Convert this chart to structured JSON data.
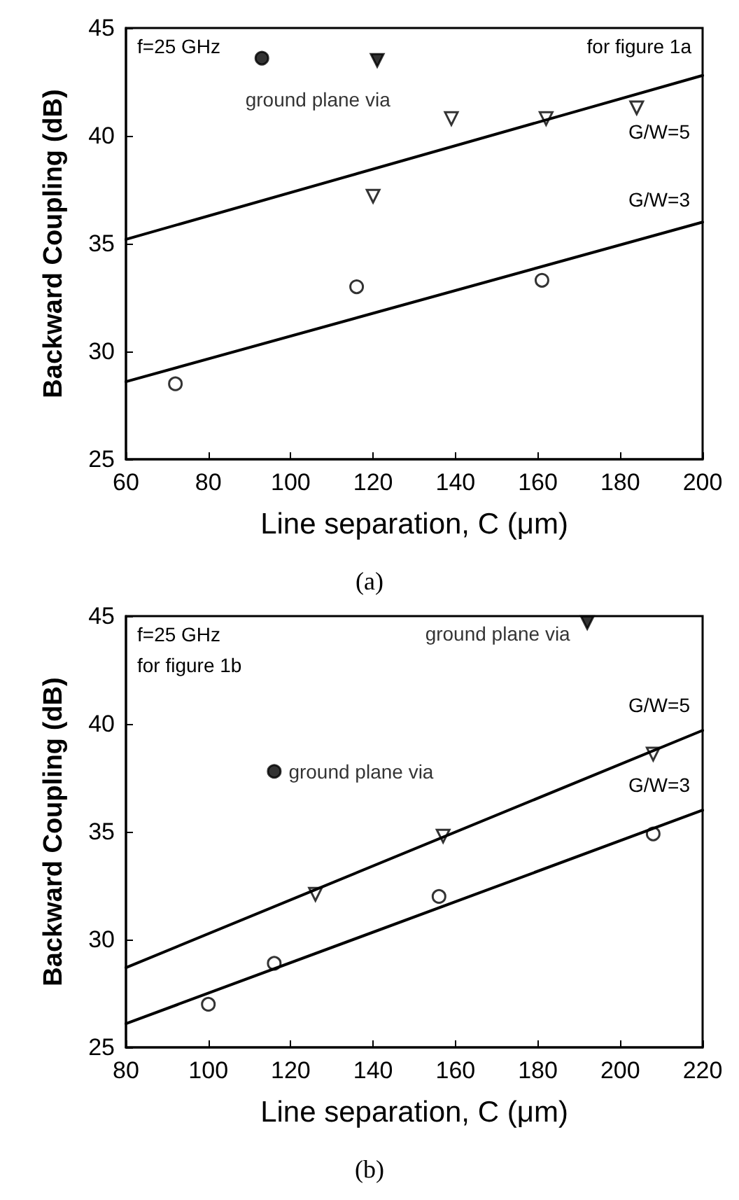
{
  "chart_data": [
    {
      "type": "scatter",
      "xlabel": "Line separation, C (μm)",
      "ylabel": "Backward Coupling (dB)",
      "xlim": [
        60,
        200
      ],
      "ylim": [
        25,
        45
      ],
      "xticks": [
        60,
        80,
        100,
        120,
        140,
        160,
        180,
        200
      ],
      "yticks": [
        25,
        30,
        35,
        40,
        45
      ],
      "grid": false,
      "legend": false,
      "series": [
        {
          "marker": "circle",
          "color": "#000000",
          "x": [
            72,
            116,
            161
          ],
          "values": [
            28.5,
            33,
            33.3
          ]
        },
        {
          "marker": "triangle",
          "color": "#000000",
          "x": [
            120,
            139,
            162,
            184
          ],
          "values": [
            37.2,
            40.8,
            40.8,
            41.3
          ]
        },
        {
          "name": "ground plane via",
          "marker": "circle",
          "color": "#000000",
          "x": [
            93
          ],
          "values": [
            43.6
          ]
        },
        {
          "marker": "triangle",
          "color": "#000000",
          "x": [
            121
          ],
          "values": [
            43.5
          ]
        },
        {
          "name": "G/W=5",
          "type": "line",
          "marker": "none",
          "line_style": "solid",
          "color": "#000000",
          "x": [
            60,
            200
          ],
          "values": [
            35.2,
            42.8
          ]
        },
        {
          "name": "G/W=3",
          "type": "line",
          "marker": "none",
          "line_style": "solid",
          "color": "#000000",
          "x": [
            60,
            200
          ],
          "values": [
            28.6,
            36
          ]
        }
      ],
      "annotations": [
        "f=25 GHz",
        "for figure 1a",
        "(a)"
      ]
    },
    {
      "type": "scatter",
      "xlabel": "Line separation, C (μm)",
      "ylabel": "Backward Coupling (dB)",
      "xlim": [
        80,
        220
      ],
      "ylim": [
        25,
        45
      ],
      "xticks": [
        80,
        100,
        120,
        140,
        160,
        180,
        200,
        220
      ],
      "yticks": [
        25,
        30,
        35,
        40,
        45
      ],
      "grid": false,
      "legend": false,
      "series": [
        {
          "marker": "circle",
          "color": "#000000",
          "x": [
            100,
            116,
            156,
            208
          ],
          "values": [
            27,
            28.9,
            32,
            34.9
          ]
        },
        {
          "marker": "triangle",
          "color": "#000000",
          "x": [
            126,
            157,
            208
          ],
          "values": [
            32.1,
            34.8,
            38.6
          ]
        },
        {
          "name": "ground plane via",
          "marker": "circle",
          "color": "#000000",
          "x": [
            116
          ],
          "values": [
            37.8
          ]
        },
        {
          "name": "ground plane via",
          "marker": "triangle",
          "color": "#000000",
          "x": [
            192
          ],
          "values": [
            44.7
          ]
        },
        {
          "name": "G/W=5",
          "type": "line",
          "marker": "none",
          "line_style": "solid",
          "color": "#000000",
          "x": [
            80,
            220
          ],
          "values": [
            28.7,
            39.7
          ]
        },
        {
          "name": "G/W=3",
          "type": "line",
          "marker": "none",
          "line_style": "solid",
          "color": "#000000",
          "x": [
            80,
            220
          ],
          "values": [
            26.1,
            36
          ]
        }
      ],
      "annotations": [
        "f=25 GHz",
        "for figure 1b",
        "(b)"
      ]
    }
  ]
}
